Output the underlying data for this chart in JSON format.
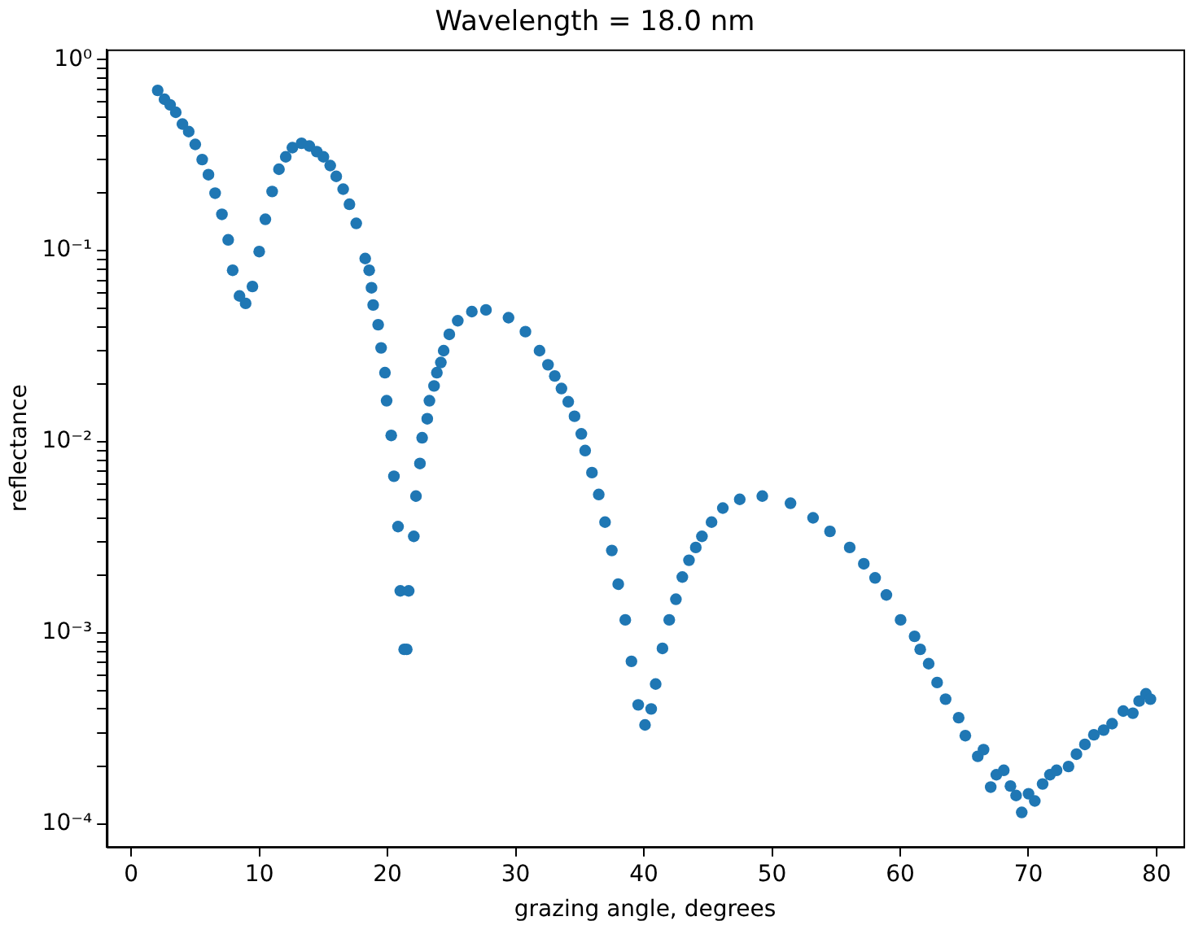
{
  "chart_data": {
    "type": "scatter",
    "title": "Wavelength = 18.0 nm",
    "xlabel": "grazing angle, degrees",
    "ylabel": "reflectance",
    "log": "y",
    "grid": false,
    "legend": false,
    "marker": "circle",
    "xlim": [
      -1.9,
      82.1
    ],
    "xticks": [
      0,
      10,
      20,
      30,
      40,
      50,
      60,
      70,
      80
    ],
    "ylim": [
      7.6e-05,
      1.13
    ],
    "yticks": [
      {
        "value": 0.0001,
        "label": "10⁻⁴"
      },
      {
        "value": 0.0002,
        "label": null
      },
      {
        "value": 0.0003,
        "label": null
      },
      {
        "value": 0.0004,
        "label": null
      },
      {
        "value": 0.0005,
        "label": null
      },
      {
        "value": 0.0006,
        "label": null
      },
      {
        "value": 0.0007,
        "label": null
      },
      {
        "value": 0.0008,
        "label": null
      },
      {
        "value": 0.0009,
        "label": null
      },
      {
        "value": 0.001,
        "label": "10⁻³"
      },
      {
        "value": 0.002,
        "label": null
      },
      {
        "value": 0.003,
        "label": null
      },
      {
        "value": 0.004,
        "label": null
      },
      {
        "value": 0.005,
        "label": null
      },
      {
        "value": 0.006,
        "label": null
      },
      {
        "value": 0.007,
        "label": null
      },
      {
        "value": 0.008,
        "label": null
      },
      {
        "value": 0.009,
        "label": null
      },
      {
        "value": 0.01,
        "label": "10⁻²"
      },
      {
        "value": 0.02,
        "label": null
      },
      {
        "value": 0.03,
        "label": null
      },
      {
        "value": 0.04,
        "label": null
      },
      {
        "value": 0.05,
        "label": null
      },
      {
        "value": 0.06,
        "label": null
      },
      {
        "value": 0.07,
        "label": null
      },
      {
        "value": 0.08,
        "label": null
      },
      {
        "value": 0.09,
        "label": null
      },
      {
        "value": 0.1,
        "label": "10⁻¹"
      },
      {
        "value": 0.2,
        "label": null
      },
      {
        "value": 0.3,
        "label": null
      },
      {
        "value": 0.4,
        "label": null
      },
      {
        "value": 0.5,
        "label": null
      },
      {
        "value": 0.6,
        "label": null
      },
      {
        "value": 0.7,
        "label": null
      },
      {
        "value": 0.8,
        "label": null
      },
      {
        "value": 0.9,
        "label": null
      },
      {
        "value": 1,
        "label": "10⁰"
      }
    ],
    "series": [
      {
        "color": "#1f77b4",
        "x": [
          2.07,
          2.6,
          3.04,
          3.48,
          4.0,
          4.49,
          5.0,
          5.54,
          6.03,
          6.55,
          7.08,
          7.57,
          7.92,
          8.45,
          8.93,
          9.46,
          9.99,
          10.47,
          11.0,
          11.53,
          12.06,
          12.58,
          13.29,
          13.9,
          14.48,
          15.0,
          15.53,
          16.0,
          16.54,
          17.03,
          17.56,
          18.26,
          18.57,
          18.75,
          18.88,
          19.27,
          19.5,
          19.8,
          19.93,
          20.29,
          20.5,
          20.82,
          21.0,
          21.3,
          21.5,
          21.65,
          22.05,
          22.22,
          22.53,
          22.7,
          23.1,
          23.27,
          23.63,
          23.85,
          24.16,
          24.38,
          24.82,
          25.48,
          26.58,
          27.68,
          29.44,
          30.76,
          31.86,
          32.52,
          33.05,
          33.57,
          34.1,
          34.59,
          35.12,
          35.42,
          35.95,
          36.48,
          36.97,
          37.5,
          38.0,
          38.55,
          39.03,
          39.56,
          40.09,
          40.57,
          40.92,
          41.45,
          41.98,
          42.5,
          43.0,
          43.52,
          44.05,
          44.53,
          45.28,
          46.16,
          47.48,
          49.24,
          51.44,
          53.2,
          54.52,
          56.06,
          57.16,
          58.04,
          58.92,
          60.03,
          61.12,
          61.56,
          62.22,
          62.88,
          63.54,
          64.56,
          65.08,
          66.05,
          66.5,
          67.06,
          67.5,
          68.08,
          68.6,
          69.04,
          69.48,
          70.01,
          70.5,
          71.11,
          71.68,
          72.2,
          73.13,
          73.75,
          74.41,
          75.11,
          75.87,
          76.53,
          77.4,
          78.15,
          78.64,
          79.17,
          79.52
        ],
        "values": [
          0.69,
          0.62,
          0.58,
          0.53,
          0.46,
          0.42,
          0.36,
          0.3,
          0.25,
          0.2,
          0.155,
          0.114,
          0.079,
          0.058,
          0.053,
          0.065,
          0.099,
          0.146,
          0.204,
          0.267,
          0.31,
          0.346,
          0.365,
          0.353,
          0.33,
          0.31,
          0.279,
          0.245,
          0.21,
          0.175,
          0.139,
          0.091,
          0.079,
          0.064,
          0.052,
          0.041,
          0.031,
          0.023,
          0.0164,
          0.0108,
          0.0066,
          0.0036,
          0.00166,
          0.00082,
          0.00082,
          0.00166,
          0.0032,
          0.0052,
          0.0077,
          0.0105,
          0.0132,
          0.0164,
          0.0196,
          0.023,
          0.026,
          0.03,
          0.0365,
          0.043,
          0.048,
          0.049,
          0.0446,
          0.0377,
          0.03,
          0.0253,
          0.0221,
          0.019,
          0.0162,
          0.0136,
          0.011,
          0.009,
          0.0069,
          0.0053,
          0.0038,
          0.0027,
          0.0018,
          0.00117,
          0.00071,
          0.00042,
          0.00033,
          0.0004,
          0.00054,
          0.00083,
          0.00117,
          0.0015,
          0.00196,
          0.0024,
          0.0028,
          0.0032,
          0.0038,
          0.0045,
          0.005,
          0.0052,
          0.00477,
          0.004,
          0.0034,
          0.0028,
          0.0023,
          0.00194,
          0.00158,
          0.00117,
          0.00096,
          0.00082,
          0.00069,
          0.00055,
          0.00045,
          0.00036,
          0.00029,
          0.000226,
          0.000245,
          0.000156,
          0.000181,
          0.000191,
          0.000158,
          0.000141,
          0.000115,
          0.000144,
          0.000132,
          0.000162,
          0.000181,
          0.000191,
          0.0002,
          0.000232,
          0.000261,
          0.000293,
          0.00031,
          0.000335,
          0.00039,
          0.00038,
          0.00044,
          0.00048,
          0.00045
        ]
      }
    ]
  }
}
